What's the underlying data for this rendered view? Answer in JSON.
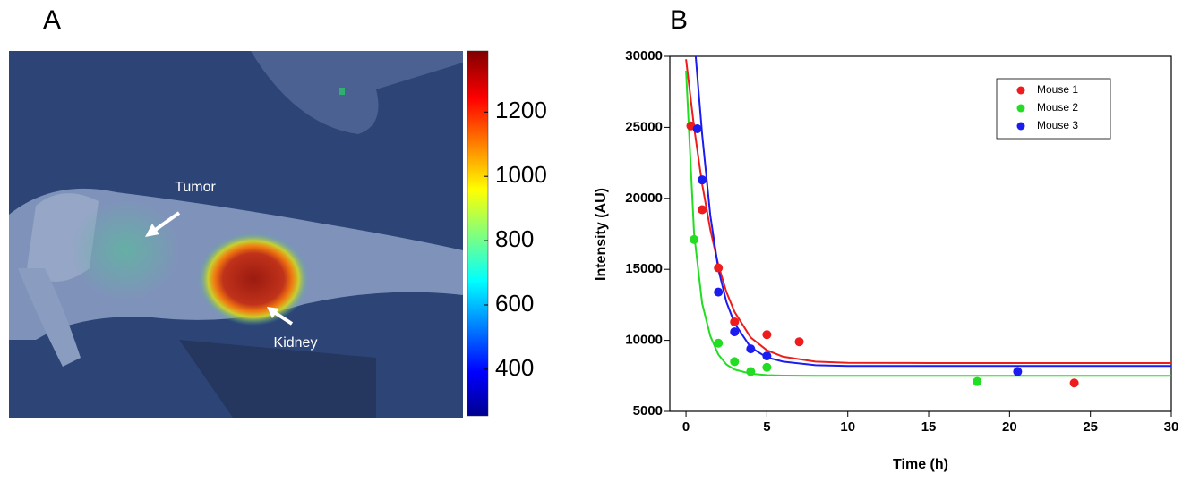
{
  "chart_data": [
    {
      "type": "image",
      "panel": "A",
      "annotations": [
        "Tumor",
        "Kidney"
      ],
      "colorbar": {
        "clim": [
          255,
          1390
        ],
        "ticks": [
          400,
          600,
          800,
          1000,
          1200
        ]
      }
    },
    {
      "type": "scatter",
      "panel": "B",
      "xlabel": "Time (h)",
      "ylabel": "Intensity (AU)",
      "xlim": [
        -1,
        30
      ],
      "xticks": [
        0,
        5,
        10,
        15,
        20,
        25,
        30
      ],
      "ylim": [
        5000,
        30000
      ],
      "yticks": [
        5000,
        10000,
        15000,
        20000,
        25000,
        30000
      ],
      "legend": "upper right",
      "series": [
        {
          "name": "Mouse 1",
          "color": "#ee1c1c",
          "x": [
            0.3,
            1,
            2,
            3,
            5,
            7,
            24
          ],
          "values": [
            25100,
            19200,
            15100,
            11300,
            10400,
            9900,
            7000
          ]
        },
        {
          "name": "Mouse 2",
          "color": "#22dd22",
          "x": [
            0.5,
            2,
            3,
            4,
            5,
            18
          ],
          "values": [
            17100,
            9800,
            8500,
            7800,
            8100,
            7100
          ]
        },
        {
          "name": "Mouse 3",
          "color": "#1c1cee",
          "x": [
            0.7,
            1,
            2,
            3,
            4,
            5,
            20.5
          ],
          "values": [
            24900,
            21300,
            13400,
            10600,
            9400,
            8900,
            7800
          ]
        }
      ],
      "fits": [
        {
          "color": "#ee1c1c",
          "x": [
            0,
            0.5,
            1,
            1.5,
            2,
            2.5,
            3,
            4,
            5,
            6,
            8,
            10,
            15,
            20,
            25,
            30
          ],
          "values": [
            29800,
            25000,
            21000,
            17800,
            15300,
            13400,
            12000,
            10200,
            9300,
            8850,
            8500,
            8420,
            8400,
            8400,
            8400,
            8400
          ]
        },
        {
          "color": "#22dd22",
          "x": [
            0,
            0.5,
            1,
            1.5,
            2,
            2.5,
            3,
            4,
            5,
            6,
            8,
            10,
            15,
            30
          ],
          "values": [
            29000,
            17500,
            12600,
            10300,
            9000,
            8300,
            7950,
            7650,
            7550,
            7520,
            7500,
            7500,
            7500,
            7500
          ]
        },
        {
          "color": "#1c1cee",
          "x": [
            0.6,
            1,
            1.5,
            2,
            2.5,
            3,
            4,
            5,
            6,
            8,
            10,
            15,
            30
          ],
          "values": [
            30000,
            24500,
            18800,
            15000,
            12700,
            11200,
            9500,
            8800,
            8500,
            8250,
            8200,
            8200,
            8200
          ]
        }
      ]
    }
  ]
}
